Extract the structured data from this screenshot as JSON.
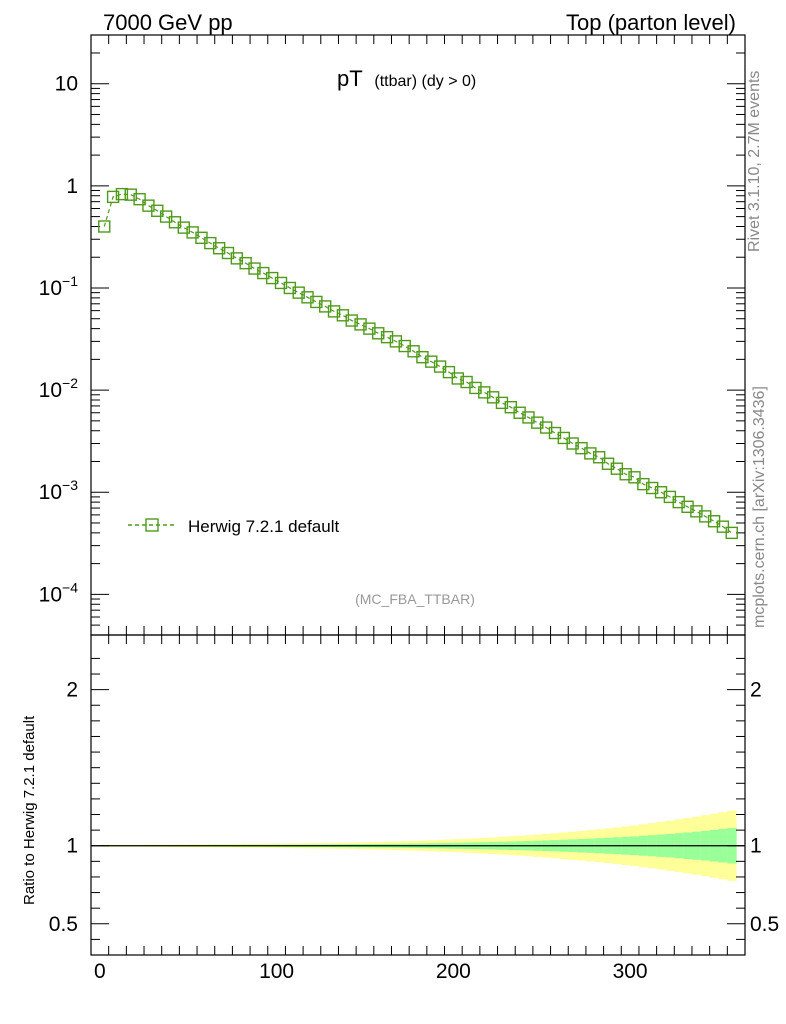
{
  "header": {
    "left_title": "7000 GeV pp",
    "right_title": "Top (parton level)"
  },
  "side_labels": {
    "rivet": "Rivet 3.1.10,  2.7M events",
    "mcplots": "mcplots.cern.ch [arXiv:1306.3436]"
  },
  "plot_title": {
    "main": "pT",
    "sub": "(ttbar) (dy > 0)"
  },
  "analysis_label": "(MC_FBA_TTBAR)",
  "ratio_ylabel": "Ratio to Herwig 7.2.1 default",
  "colors": {
    "series": "#4f9a1a",
    "band_inner": "#99ff99",
    "band_outer": "#ffff99"
  },
  "chart_data": [
    {
      "type": "scatter",
      "panel": "main",
      "yscale": "log",
      "xlim": [
        -5,
        365
      ],
      "ylim": [
        4e-05,
        30
      ],
      "x_ticks": [
        0,
        100,
        200,
        300
      ],
      "y_ticks": [
        {
          "value": 10,
          "mantissa": "10",
          "exp": ""
        },
        {
          "value": 1,
          "mantissa": "1",
          "exp": ""
        },
        {
          "value": 0.1,
          "mantissa": "10",
          "exp": "−1"
        },
        {
          "value": 0.01,
          "mantissa": "10",
          "exp": "−2"
        },
        {
          "value": 0.001,
          "mantissa": "10",
          "exp": "−3"
        },
        {
          "value": 0.0001,
          "mantissa": "10",
          "exp": "−4"
        }
      ],
      "legend": {
        "position": "lower-left",
        "entries": [
          "Herwig 7.2.1 default"
        ]
      },
      "series": [
        {
          "name": "Herwig 7.2.1 default",
          "marker": "open-square",
          "line": "dashed",
          "x": [
            2.5,
            7.5,
            12.5,
            17.5,
            22.5,
            27.5,
            32.5,
            37.5,
            42.5,
            47.5,
            52.5,
            57.5,
            62.5,
            67.5,
            72.5,
            77.5,
            82.5,
            87.5,
            92.5,
            97.5,
            102.5,
            107.5,
            112.5,
            117.5,
            122.5,
            127.5,
            132.5,
            137.5,
            142.5,
            147.5,
            152.5,
            157.5,
            162.5,
            167.5,
            172.5,
            177.5,
            182.5,
            187.5,
            192.5,
            197.5,
            202.5,
            207.5,
            212.5,
            217.5,
            222.5,
            227.5,
            232.5,
            237.5,
            242.5,
            247.5,
            252.5,
            257.5,
            262.5,
            267.5,
            272.5,
            277.5,
            282.5,
            287.5,
            292.5,
            297.5,
            302.5,
            307.5,
            312.5,
            317.5,
            322.5,
            327.5,
            332.5,
            337.5,
            342.5,
            347.5,
            352.5,
            357.5
          ],
          "y": [
            0.4,
            0.78,
            0.83,
            0.82,
            0.74,
            0.64,
            0.57,
            0.5,
            0.44,
            0.39,
            0.35,
            0.31,
            0.275,
            0.245,
            0.22,
            0.195,
            0.175,
            0.155,
            0.14,
            0.125,
            0.112,
            0.1,
            0.09,
            0.081,
            0.073,
            0.066,
            0.059,
            0.054,
            0.048,
            0.044,
            0.04,
            0.036,
            0.033,
            0.03,
            0.027,
            0.024,
            0.021,
            0.019,
            0.017,
            0.015,
            0.013,
            0.012,
            0.0105,
            0.0095,
            0.0085,
            0.0075,
            0.0068,
            0.006,
            0.0054,
            0.0048,
            0.0043,
            0.0038,
            0.0034,
            0.003,
            0.0027,
            0.0024,
            0.0022,
            0.0019,
            0.0017,
            0.0015,
            0.0014,
            0.0012,
            0.0011,
            0.001,
            0.0009,
            0.0008,
            0.00072,
            0.00065,
            0.00058,
            0.00052,
            0.00046,
            0.0004
          ]
        }
      ]
    },
    {
      "type": "area",
      "panel": "ratio",
      "xlim": [
        -5,
        365
      ],
      "ylim": [
        0.3,
        2.35
      ],
      "x_ticks": [
        0,
        100,
        200,
        300
      ],
      "y_ticks": [
        0.5,
        1,
        2
      ],
      "reference_line": 1,
      "series": [
        {
          "name": "",
          "x": [
            0,
            20,
            40,
            60,
            80,
            100,
            120,
            140,
            160,
            180,
            200,
            220,
            240,
            260,
            280,
            300,
            320,
            340,
            360
          ],
          "inner_half_width": [
            0.003,
            0.003,
            0.004,
            0.005,
            0.006,
            0.007,
            0.008,
            0.01,
            0.012,
            0.015,
            0.019,
            0.024,
            0.03,
            0.038,
            0.048,
            0.06,
            0.075,
            0.095,
            0.12
          ],
          "outer_half_width": [
            0.006,
            0.006,
            0.008,
            0.01,
            0.012,
            0.014,
            0.017,
            0.021,
            0.026,
            0.033,
            0.042,
            0.053,
            0.067,
            0.085,
            0.105,
            0.13,
            0.16,
            0.195,
            0.235
          ]
        }
      ]
    }
  ]
}
